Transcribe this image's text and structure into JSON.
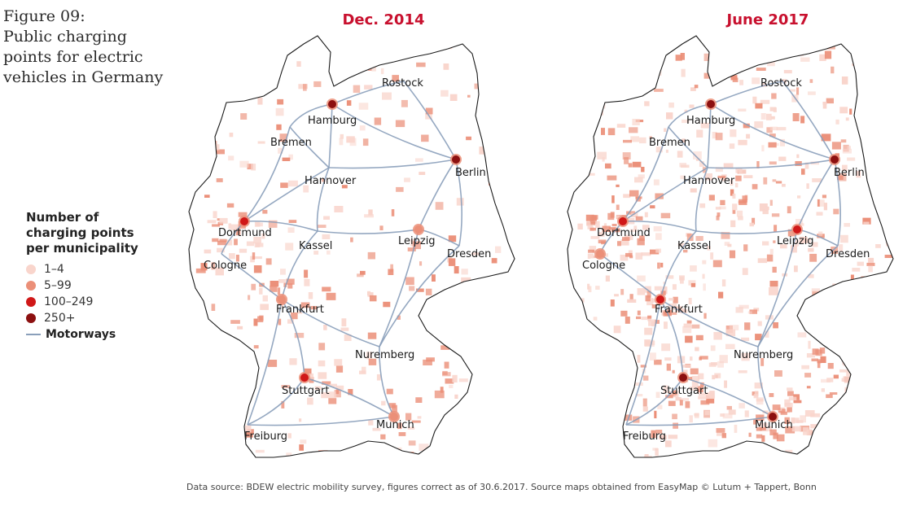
{
  "figure": {
    "title_lines": [
      "Figure 09:",
      "Public charging",
      "points for electric",
      "vehicles in Germany"
    ]
  },
  "maps": [
    {
      "title": "Dec. 2014"
    },
    {
      "title": "June 2017"
    }
  ],
  "cities": [
    "Rostock",
    "Hamburg",
    "Bremen",
    "Berlin",
    "Hannover",
    "Dortmund",
    "Kassel",
    "Leipzig",
    "Cologne",
    "Dresden",
    "Frankfurt",
    "Nuremberg",
    "Stuttgart",
    "Munich",
    "Freiburg"
  ],
  "legend": {
    "title_lines": [
      "Number of",
      "charging points",
      "per municipality"
    ],
    "items": [
      {
        "label": "1–4",
        "color": "#f9d5cc"
      },
      {
        "label": "5–99",
        "color": "#eb8f78"
      },
      {
        "label": "100–249",
        "color": "#d01818"
      },
      {
        "label": "250+",
        "color": "#8c1010"
      }
    ],
    "motorways_label": "Motorways",
    "motorways_color": "#8a9fba"
  },
  "source_text": "Data source: BDEW electric mobility survey, figures correct as of 30.6.2017. Source maps obtained from EasyMap © Lutum + Tappert, Bonn"
}
